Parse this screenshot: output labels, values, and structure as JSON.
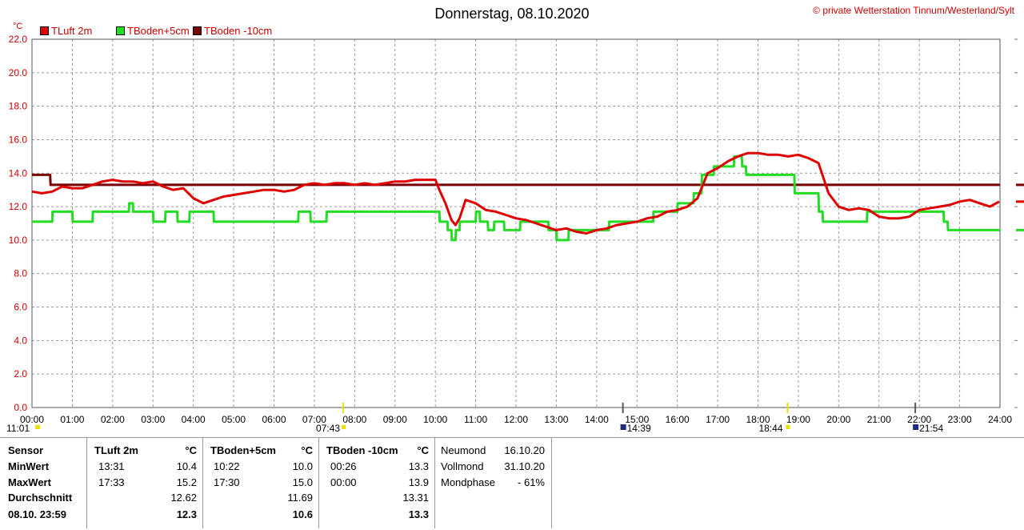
{
  "title": "Donnerstag, 08.10.2020",
  "credit": "© private Wetterstation Tinnum/Westerland/Sylt",
  "unit_label": "°C",
  "legend": [
    {
      "label": "TLuft 2m",
      "color": "#e00000"
    },
    {
      "label": "TBoden+5cm",
      "color": "#22dd22"
    },
    {
      "label": "TBoden -10cm",
      "color": "#7a0000"
    }
  ],
  "events": {
    "sunrise": "07:43",
    "sunset": "18:44",
    "moonset": "14:39",
    "moonrise": "21:54",
    "daylength": "11:01"
  },
  "chart_data": {
    "type": "line",
    "xlabel": "",
    "ylabel": "°C",
    "xlim": [
      0,
      24
    ],
    "ylim": [
      0,
      22
    ],
    "grid": true,
    "x_ticks": [
      "00:00",
      "01:00",
      "02:00",
      "03:00",
      "04:00",
      "05:00",
      "06:00",
      "07:00",
      "08:00",
      "09:00",
      "10:00",
      "11:00",
      "12:00",
      "13:00",
      "14:00",
      "15:00",
      "16:00",
      "17:00",
      "18:00",
      "19:00",
      "20:00",
      "21:00",
      "22:00",
      "23:00",
      "24:00"
    ],
    "y_ticks": [
      "0.0",
      "2.0",
      "4.0",
      "6.0",
      "8.0",
      "10.0",
      "12.0",
      "14.0",
      "16.0",
      "18.0",
      "20.0",
      "22.0"
    ],
    "series": [
      {
        "name": "TLuft 2m",
        "color": "#e00000",
        "x": [
          0,
          0.25,
          0.5,
          0.75,
          1,
          1.25,
          1.5,
          1.75,
          2,
          2.25,
          2.5,
          2.75,
          3,
          3.25,
          3.5,
          3.75,
          4,
          4.25,
          4.5,
          4.75,
          5,
          5.25,
          5.5,
          5.75,
          6,
          6.25,
          6.5,
          6.75,
          7,
          7.25,
          7.5,
          7.75,
          8,
          8.25,
          8.5,
          8.75,
          9,
          9.25,
          9.5,
          9.75,
          10,
          10.1,
          10.25,
          10.4,
          10.5,
          10.6,
          10.75,
          11,
          11.25,
          11.5,
          11.75,
          12,
          12.25,
          12.5,
          12.75,
          13,
          13.25,
          13.5,
          13.75,
          14,
          14.25,
          14.5,
          14.75,
          15,
          15.25,
          15.5,
          15.75,
          16,
          16.25,
          16.5,
          16.75,
          17,
          17.25,
          17.5,
          17.75,
          18,
          18.25,
          18.5,
          18.75,
          19,
          19.25,
          19.5,
          19.75,
          20,
          20.25,
          20.5,
          20.75,
          21,
          21.25,
          21.5,
          21.75,
          22,
          22.25,
          22.5,
          22.75,
          23,
          23.25,
          23.5,
          23.75,
          23.98
        ],
        "y": [
          12.9,
          12.8,
          12.9,
          13.2,
          13.1,
          13.1,
          13.3,
          13.5,
          13.6,
          13.5,
          13.5,
          13.4,
          13.5,
          13.2,
          13.0,
          13.1,
          12.5,
          12.2,
          12.4,
          12.6,
          12.7,
          12.8,
          12.9,
          13.0,
          13.0,
          12.9,
          13.0,
          13.3,
          13.4,
          13.3,
          13.4,
          13.4,
          13.3,
          13.4,
          13.3,
          13.4,
          13.5,
          13.5,
          13.6,
          13.6,
          13.6,
          13.0,
          12.2,
          11.2,
          10.9,
          11.3,
          12.4,
          12.2,
          11.8,
          11.7,
          11.5,
          11.3,
          11.2,
          11.0,
          10.8,
          10.6,
          10.7,
          10.5,
          10.4,
          10.6,
          10.7,
          10.9,
          11.0,
          11.1,
          11.3,
          11.4,
          11.7,
          11.8,
          12.0,
          12.5,
          14.0,
          14.3,
          14.7,
          15.0,
          15.2,
          15.2,
          15.1,
          15.1,
          15.0,
          15.1,
          14.9,
          14.6,
          12.8,
          12.0,
          11.8,
          11.9,
          11.8,
          11.4,
          11.3,
          11.3,
          11.4,
          11.8,
          11.9,
          12.0,
          12.1,
          12.3,
          12.4,
          12.2,
          12.0,
          12.3
        ]
      },
      {
        "name": "TBoden+5cm",
        "color": "#22dd22",
        "x": [
          0,
          0.5,
          0.51,
          1.0,
          1.01,
          1.5,
          1.51,
          2.4,
          2.41,
          2.5,
          2.51,
          3.0,
          3.01,
          3.3,
          3.31,
          3.6,
          3.61,
          3.9,
          3.91,
          4.5,
          4.51,
          6.6,
          6.61,
          6.9,
          6.91,
          7.3,
          7.31,
          7.6,
          7.61,
          10.1,
          10.11,
          10.3,
          10.31,
          10.4,
          10.41,
          10.5,
          10.51,
          10.6,
          10.61,
          11.0,
          11.01,
          11.1,
          11.11,
          11.3,
          11.31,
          11.45,
          11.46,
          11.7,
          11.71,
          12.1,
          12.11,
          12.8,
          12.81,
          13.0,
          13.01,
          13.3,
          13.31,
          14.3,
          14.31,
          15.4,
          15.41,
          16.0,
          16.01,
          16.4,
          16.41,
          16.6,
          16.61,
          16.9,
          16.91,
          17.0,
          17.01,
          17.4,
          17.41,
          17.6,
          17.61,
          17.7,
          17.71,
          18.9,
          18.91,
          19.5,
          19.51,
          19.6,
          19.61,
          20.7,
          20.71,
          22.6,
          22.61,
          22.7,
          22.71,
          23.8,
          23.81,
          24.0
        ],
        "y": [
          11.1,
          11.1,
          11.7,
          11.7,
          11.1,
          11.1,
          11.7,
          11.7,
          12.2,
          12.2,
          11.7,
          11.7,
          11.1,
          11.1,
          11.7,
          11.7,
          11.1,
          11.1,
          11.7,
          11.7,
          11.1,
          11.1,
          11.7,
          11.7,
          11.1,
          11.1,
          11.7,
          11.7,
          11.7,
          11.7,
          11.1,
          11.1,
          10.6,
          10.6,
          10.0,
          10.0,
          10.6,
          10.6,
          11.1,
          11.1,
          11.7,
          11.7,
          11.1,
          11.1,
          10.6,
          10.6,
          11.1,
          11.1,
          10.6,
          10.6,
          11.1,
          11.1,
          10.6,
          10.6,
          10.0,
          10.0,
          10.6,
          10.6,
          11.1,
          11.1,
          11.7,
          11.7,
          12.2,
          12.2,
          12.8,
          12.8,
          13.9,
          13.9,
          14.4,
          14.4,
          14.4,
          14.4,
          15.0,
          15.0,
          14.4,
          14.4,
          13.9,
          13.9,
          12.8,
          12.8,
          11.7,
          11.7,
          11.1,
          11.1,
          11.7,
          11.7,
          11.1,
          11.1,
          10.6,
          10.6,
          10.6,
          10.6
        ]
      },
      {
        "name": "TBoden -10cm",
        "color": "#7a0000",
        "x": [
          0,
          0.45,
          0.46,
          24
        ],
        "y": [
          13.9,
          13.9,
          13.3,
          13.3
        ]
      }
    ]
  },
  "stats": {
    "sensor_header": "Sensor",
    "row_labels": [
      "MinWert",
      "MaxWert",
      "Durchschnitt",
      "08.10. 23:59"
    ],
    "columns": [
      {
        "header": "TLuft 2m",
        "unit": "°C",
        "min_time": "13:31",
        "min_value": "10.4",
        "max_time": "17:33",
        "max_value": "15.2",
        "avg": "12.62",
        "current": "12.3"
      },
      {
        "header": "TBoden+5cm",
        "unit": "°C",
        "min_time": "10:22",
        "min_value": "10.0",
        "max_time": "17:30",
        "max_value": "15.0",
        "avg": "11.69",
        "current": "10.6"
      },
      {
        "header": "TBoden -10cm",
        "unit": "°C",
        "min_time": "00:26",
        "min_value": "13.3",
        "max_time": "00:00",
        "max_value": "13.9",
        "avg": "13.31",
        "current": "13.3"
      }
    ],
    "moon": [
      {
        "label": "Neumond",
        "value": "16.10.20"
      },
      {
        "label": "Vollmond",
        "value": "31.10.20"
      },
      {
        "label": "Mondphase",
        "value": "- 61%"
      }
    ]
  }
}
